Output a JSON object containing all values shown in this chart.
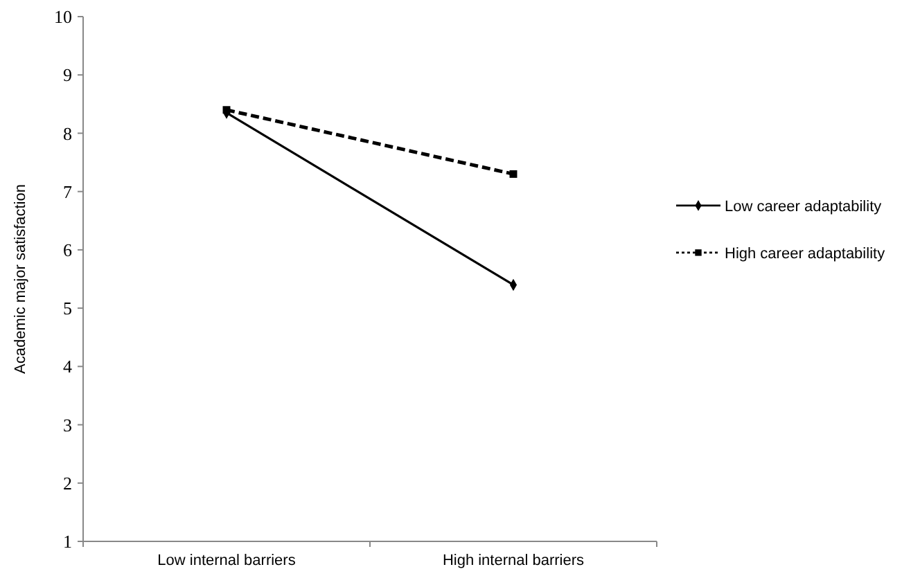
{
  "chart_data": {
    "type": "line",
    "ylabel": "Academic major satisfaction",
    "categories": [
      "Low internal barriers",
      "High internal barriers"
    ],
    "series": [
      {
        "name": "Low career adaptability",
        "color": "#000000",
        "values": [
          8.35,
          5.4
        ],
        "marker": "diamond",
        "line_style": "solid"
      },
      {
        "name": "High career adaptability",
        "color": "#000000",
        "values": [
          8.4,
          7.3
        ],
        "marker": "square",
        "line_style": "dashed"
      }
    ],
    "ylim": [
      1,
      10
    ],
    "yticks": [
      1,
      2,
      3,
      4,
      5,
      6,
      7,
      8,
      9,
      10
    ],
    "grid": false,
    "legend": "right"
  }
}
